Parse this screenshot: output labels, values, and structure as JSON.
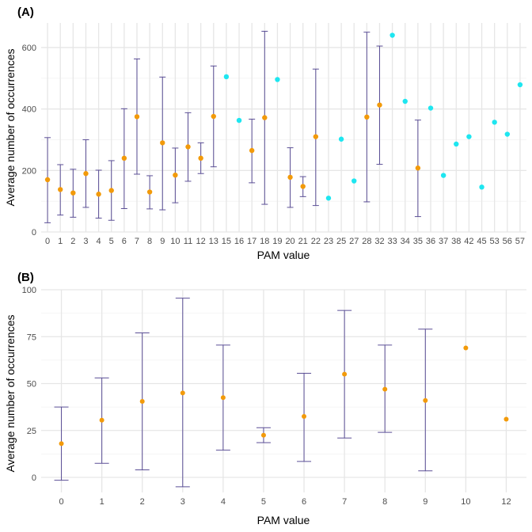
{
  "chart_data": [
    {
      "type": "scatter",
      "panel_label": "(A)",
      "xlabel": "PAM value",
      "ylabel": "Average number of occurrences",
      "ylim": [
        0,
        680
      ],
      "yticks": [
        0,
        200,
        400,
        600
      ],
      "grid": true,
      "colors": {
        "with_error": "#f29a0a",
        "no_error": "#1ee6f0",
        "errbar": "#5b4f96"
      },
      "categories": [
        "0",
        "1",
        "2",
        "3",
        "4",
        "5",
        "6",
        "7",
        "8",
        "9",
        "10",
        "11",
        "12",
        "13",
        "15",
        "16",
        "17",
        "18",
        "19",
        "20",
        "21",
        "22",
        "23",
        "25",
        "27",
        "28",
        "32",
        "33",
        "34",
        "35",
        "36",
        "37",
        "38",
        "42",
        "45",
        "53",
        "56",
        "57"
      ],
      "points": [
        {
          "x": "0",
          "y": 170,
          "lo": 30,
          "hi": 307
        },
        {
          "x": "1",
          "y": 138,
          "lo": 55,
          "hi": 219
        },
        {
          "x": "2",
          "y": 127,
          "lo": 48,
          "hi": 204
        },
        {
          "x": "3",
          "y": 190,
          "lo": 80,
          "hi": 300
        },
        {
          "x": "4",
          "y": 123,
          "lo": 45,
          "hi": 201
        },
        {
          "x": "5",
          "y": 135,
          "lo": 38,
          "hi": 232
        },
        {
          "x": "6",
          "y": 240,
          "lo": 76,
          "hi": 401
        },
        {
          "x": "7",
          "y": 375,
          "lo": 188,
          "hi": 563
        },
        {
          "x": "8",
          "y": 130,
          "lo": 75,
          "hi": 183
        },
        {
          "x": "9",
          "y": 290,
          "lo": 72,
          "hi": 504
        },
        {
          "x": "10",
          "y": 185,
          "lo": 95,
          "hi": 273
        },
        {
          "x": "11",
          "y": 277,
          "lo": 165,
          "hi": 388
        },
        {
          "x": "12",
          "y": 240,
          "lo": 190,
          "hi": 290
        },
        {
          "x": "13",
          "y": 376,
          "lo": 212,
          "hi": 540
        },
        {
          "x": "15",
          "y": 505
        },
        {
          "x": "16",
          "y": 363
        },
        {
          "x": "17",
          "y": 265,
          "lo": 160,
          "hi": 367
        },
        {
          "x": "18",
          "y": 372,
          "lo": 90,
          "hi": 653
        },
        {
          "x": "19",
          "y": 496
        },
        {
          "x": "20",
          "y": 178,
          "lo": 80,
          "hi": 274
        },
        {
          "x": "21",
          "y": 148,
          "lo": 115,
          "hi": 180
        },
        {
          "x": "22",
          "y": 310,
          "lo": 86,
          "hi": 530
        },
        {
          "x": "23",
          "y": 110
        },
        {
          "x": "25",
          "y": 302
        },
        {
          "x": "27",
          "y": 166
        },
        {
          "x": "28",
          "y": 374,
          "lo": 98,
          "hi": 650
        },
        {
          "x": "32",
          "y": 413,
          "lo": 220,
          "hi": 605
        },
        {
          "x": "33",
          "y": 640
        },
        {
          "x": "34",
          "y": 425
        },
        {
          "x": "35",
          "y": 208,
          "lo": 50,
          "hi": 364
        },
        {
          "x": "36",
          "y": 403
        },
        {
          "x": "37",
          "y": 184
        },
        {
          "x": "38",
          "y": 286
        },
        {
          "x": "42",
          "y": 310
        },
        {
          "x": "45",
          "y": 146
        },
        {
          "x": "53",
          "y": 357
        },
        {
          "x": "56",
          "y": 318
        },
        {
          "x": "57",
          "y": 479
        }
      ]
    },
    {
      "type": "scatter",
      "panel_label": "(B)",
      "xlabel": "PAM value",
      "ylabel": "Average number of occurrences",
      "ylim": [
        -8,
        100
      ],
      "yticks": [
        0,
        25,
        50,
        75,
        100
      ],
      "grid": true,
      "colors": {
        "point": "#f29a0a",
        "errbar": "#5b4f96"
      },
      "categories": [
        "0",
        "1",
        "2",
        "3",
        "4",
        "5",
        "6",
        "7",
        "8",
        "9",
        "10",
        "12"
      ],
      "points": [
        {
          "x": "0",
          "y": 18,
          "lo": -1.5,
          "hi": 37.5
        },
        {
          "x": "1",
          "y": 30.5,
          "lo": 7.5,
          "hi": 53
        },
        {
          "x": "2",
          "y": 40.5,
          "lo": 4,
          "hi": 77
        },
        {
          "x": "3",
          "y": 45,
          "lo": -5,
          "hi": 95.5
        },
        {
          "x": "4",
          "y": 42.5,
          "lo": 14.5,
          "hi": 70.5
        },
        {
          "x": "5",
          "y": 22.5,
          "lo": 18.5,
          "hi": 26.5
        },
        {
          "x": "6",
          "y": 32.5,
          "lo": 8.5,
          "hi": 55.5
        },
        {
          "x": "7",
          "y": 55,
          "lo": 21,
          "hi": 89
        },
        {
          "x": "8",
          "y": 47,
          "lo": 24,
          "hi": 70.5
        },
        {
          "x": "9",
          "y": 41,
          "lo": 3.5,
          "hi": 79
        },
        {
          "x": "10",
          "y": 69
        },
        {
          "x": "12",
          "y": 31
        }
      ]
    }
  ]
}
